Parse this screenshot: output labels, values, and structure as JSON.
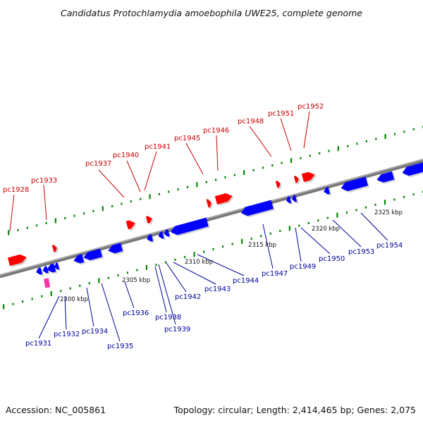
{
  "title": "Candidatus Protochlamydia amoebophila UWE25, complete genome",
  "accession": "Accession: NC_005861",
  "summary": "Topology: circular; Length: 2,414,465 bp; Genes: 2,075",
  "colors": {
    "forward": "#ff0000",
    "reverse": "#0000ff",
    "forward_label": "#cc0000",
    "reverse_label": "#000099",
    "marker": "#008800",
    "axis": "#888888",
    "rna": "#ff33aa"
  },
  "scale_labels": [
    "2300 kbp",
    "2305 kbp",
    "2310 kbp",
    "2315 kbp",
    "2320 kbp",
    "2325 kbp"
  ],
  "forward_genes": [
    "pc1928",
    "pc1933",
    "pc1937",
    "pc1940",
    "pc1941",
    "pc1945",
    "pc1946",
    "pc1948",
    "pc1951",
    "pc1952"
  ],
  "reverse_genes": [
    "pc1931",
    "pc1932",
    "pc1934",
    "pc1935",
    "pc1936",
    "pc1938",
    "pc1939",
    "pc1942",
    "pc1943",
    "pc1944",
    "pc1947",
    "pc1949",
    "pc1950",
    "pc1953",
    "pc1954"
  ]
}
